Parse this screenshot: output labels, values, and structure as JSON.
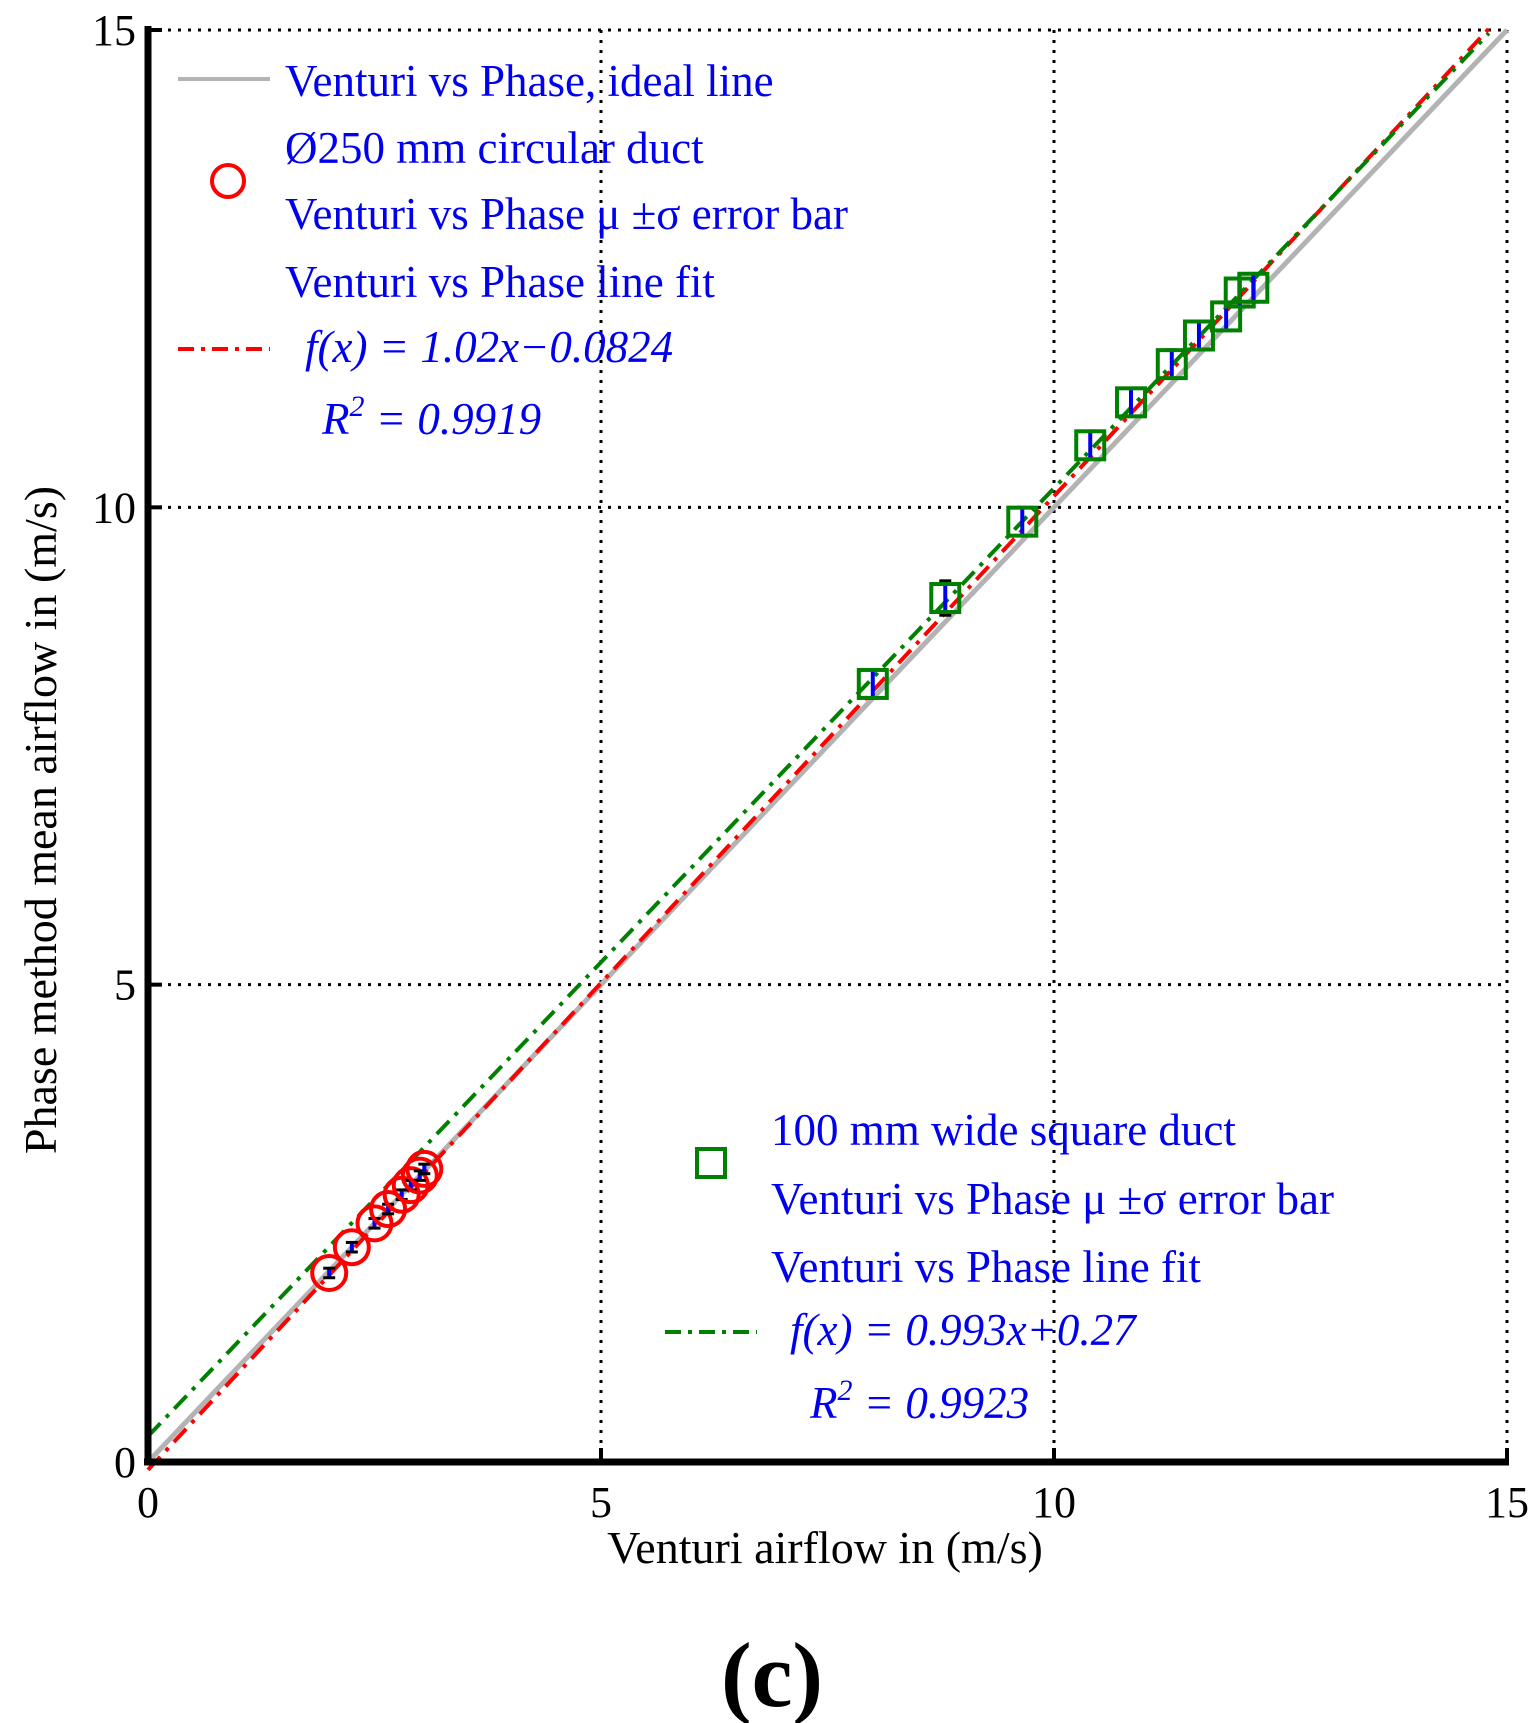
{
  "chart_data": {
    "type": "scatter",
    "xlabel": "Venturi airflow in (m/s)",
    "ylabel": "Phase method mean airflow in (m/s)",
    "xlim": [
      0,
      15
    ],
    "ylim": [
      0,
      15
    ],
    "xticks": [
      "0",
      "5",
      "10",
      "15"
    ],
    "yticks": [
      "0",
      "5",
      "10",
      "15"
    ],
    "grid": true,
    "caption": "(c)",
    "ideal_line": {
      "name": "Venturi vs Phase, ideal line",
      "color": "#b3b3b3",
      "x": [
        0,
        15
      ],
      "y": [
        0,
        15
      ]
    },
    "series": [
      {
        "name": "Ø250 mm circular duct",
        "marker": "circle",
        "color": "#ff0000",
        "errorbar_label": "Venturi vs Phase μ ±σ error bar",
        "fit_label": "Venturi vs Phase line fit",
        "fit_equation": "f(x) = 1.02x−0.0824",
        "fit_r2_label": "R",
        "fit_r2_value": " = 0.9919",
        "fit_slope": 1.02,
        "fit_intercept": -0.0824,
        "fit_color": "#ff0000",
        "x": [
          2.0,
          2.25,
          2.5,
          2.65,
          2.8,
          2.9,
          3.0,
          3.05
        ],
        "y": [
          1.98,
          2.25,
          2.5,
          2.65,
          2.8,
          2.9,
          3.0,
          3.07
        ],
        "err": [
          0.05,
          0.05,
          0.05,
          0.05,
          0.05,
          0.05,
          0.05,
          0.05
        ]
      },
      {
        "name": "100 mm wide square duct",
        "marker": "square",
        "color": "#008000",
        "errorbar_label": "Venturi vs Phase μ ±σ error bar",
        "fit_label": "Venturi vs Phase line fit",
        "fit_equation": "f(x) = 0.993x+0.27",
        "fit_r2_label": "R",
        "fit_r2_value": " = 0.9923",
        "fit_slope": 0.993,
        "fit_intercept": 0.27,
        "fit_color": "#008000",
        "x": [
          8.0,
          8.8,
          9.65,
          10.4,
          10.85,
          11.3,
          11.6,
          11.9,
          12.05,
          12.2
        ],
        "y": [
          8.15,
          9.05,
          9.85,
          10.65,
          11.1,
          11.5,
          11.8,
          12.0,
          12.25,
          12.3
        ],
        "err": [
          0.15,
          0.18,
          0.15,
          0.15,
          0.15,
          0.15,
          0.15,
          0.15,
          0.15,
          0.15
        ]
      }
    ]
  }
}
